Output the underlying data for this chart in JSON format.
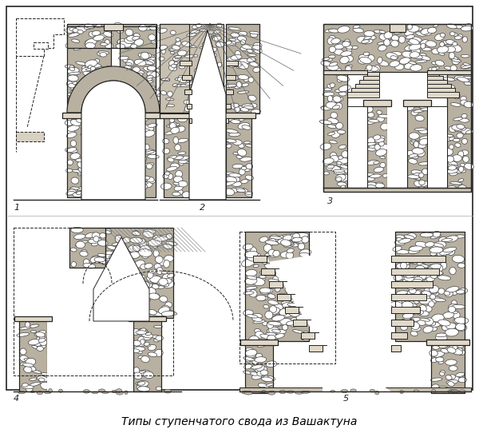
{
  "title": "Типы ступенчатого свода из Вашактуна",
  "title_fontsize": 10,
  "bg_color": "#ffffff",
  "border_color": "#000000",
  "fig_width": 6.0,
  "fig_height": 5.42,
  "labels": [
    "1",
    "2",
    "3",
    "4",
    "5"
  ],
  "stone_color": "#c8c0b0",
  "stone_edge": "#444444",
  "line_color": "#222222"
}
